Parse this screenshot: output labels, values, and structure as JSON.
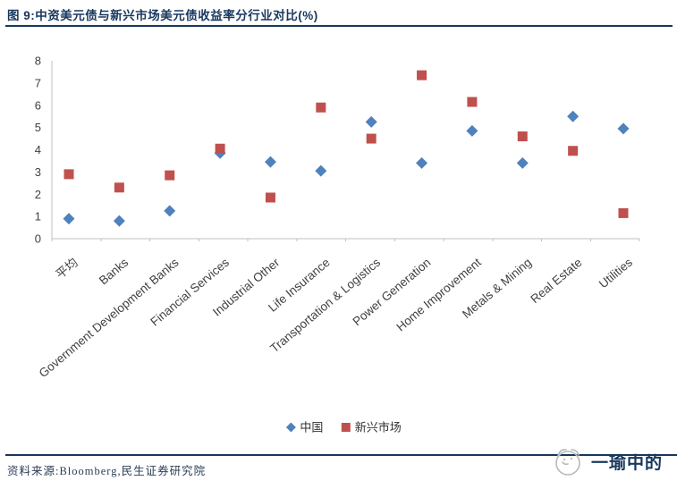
{
  "figure": {
    "title": "图 9:中资美元债与新兴市场美元债收益率分行业对比(%)",
    "source_note": "资料来源:Bloomberg,民生证券研究院",
    "watermark": "一瑜中的"
  },
  "colors": {
    "accent_navy": "#17375E",
    "china_blue": "#4F81BD",
    "em_red": "#C0504D",
    "axis_line": "#BFBFBF",
    "tick_text": "#404040",
    "legend_text": "#333333",
    "footer_text": "#2c3e55",
    "watermark_sketch": "#b9b9b9"
  },
  "chart_data": {
    "type": "scatter",
    "title": "中资美元债与新兴市场美元债收益率分行业对比 (%)",
    "categories": [
      "平均",
      "Banks",
      "Government Development Banks",
      "Financial Services",
      "Industrial Other",
      "Life Insurance",
      "Transportation & Logistics",
      "Power Generation",
      "Home Improvement",
      "Metals & Mining",
      "Real Estate",
      "Utilities"
    ],
    "series": [
      {
        "name": "中国",
        "marker": "diamond",
        "color": "#4F81BD",
        "values": [
          0.9,
          0.8,
          1.25,
          3.85,
          3.45,
          3.05,
          5.25,
          3.4,
          4.85,
          3.4,
          5.5,
          4.95
        ]
      },
      {
        "name": "新兴市场",
        "marker": "square",
        "color": "#C0504D",
        "values": [
          2.9,
          2.3,
          2.85,
          4.05,
          1.85,
          5.9,
          4.5,
          7.35,
          6.15,
          4.6,
          3.95,
          1.15
        ]
      }
    ],
    "xlabel": "",
    "ylabel": "",
    "ylim": [
      0,
      8
    ],
    "ytick_step": 1,
    "grid": false,
    "legend_position": "bottom",
    "x_label_rotation_deg": -40
  }
}
